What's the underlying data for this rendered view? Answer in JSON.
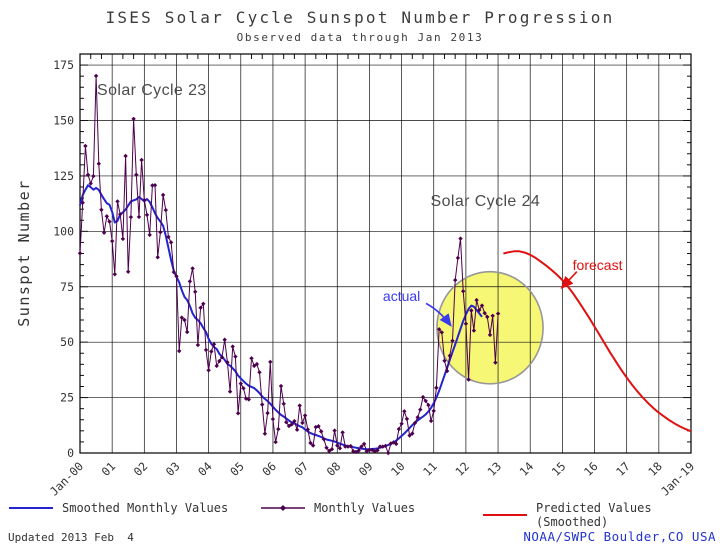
{
  "title": "ISES Solar Cycle Sunspot Number Progression",
  "subtitle": "Observed data through Jan 2013",
  "footer": {
    "updated": "Updated 2013 Feb  4",
    "credit": "NOAA/SWPC Boulder,CO USA",
    "credit_color": "#2233cc"
  },
  "chart_data": {
    "type": "line",
    "title": "ISES Solar Cycle Sunspot Number Progression",
    "subtitle": "Observed data through Jan 2013",
    "xlabel": "",
    "ylabel": "Sunspot Number",
    "ylim": [
      0,
      180
    ],
    "yticks": [
      0,
      25,
      50,
      75,
      100,
      125,
      150,
      175
    ],
    "xlim": [
      2000,
      2019
    ],
    "xtick_labels": [
      "Jan-00",
      "01",
      "02",
      "03",
      "04",
      "05",
      "06",
      "07",
      "08",
      "09",
      "10",
      "11",
      "12",
      "13",
      "14",
      "15",
      "16",
      "17",
      "18",
      "Jan-19"
    ],
    "grid": true,
    "legend_position": "bottom",
    "series": [
      {
        "id": "smoothed",
        "name": "Smoothed Monthly Values",
        "color": "#2323cf",
        "width": 2,
        "start": 2000.0,
        "step": 0.0833333,
        "values": [
          111.8,
          116.3,
          118.8,
          120.8,
          119.9,
          118.8,
          119.6,
          118.7,
          116.5,
          114.5,
          112.7,
          112.0,
          108.7,
          104.0,
          104.7,
          107.6,
          108.6,
          109.8,
          111.6,
          113.5,
          114.0,
          114.4,
          115.5,
          114.6,
          113.5,
          114.6,
          113.3,
          110.8,
          108.2,
          106.0,
          104.4,
          102.5,
          98.0,
          92.6,
          87.0,
          82.2,
          79.4,
          77.0,
          73.4,
          70.4,
          69.0,
          66.3,
          63.0,
          61.0,
          60.0,
          58.5,
          56.4,
          54.6,
          51.5,
          49.2,
          47.8,
          46.9,
          44.7,
          43.5,
          42.0,
          40.2,
          39.4,
          38.2,
          36.9,
          34.9,
          33.6,
          32.4,
          31.3,
          30.3,
          29.8,
          29.3,
          28.2,
          27.0,
          25.5,
          24.4,
          23.4,
          22.2,
          20.9,
          19.5,
          18.3,
          17.2,
          16.4,
          15.5,
          14.6,
          13.8,
          13.3,
          12.7,
          12.1,
          11.6,
          10.6,
          9.7,
          9.0,
          8.5,
          8.1,
          7.7,
          7.2,
          6.6,
          6.1,
          5.8,
          5.5,
          5.2,
          4.7,
          4.2,
          3.8,
          3.4,
          3.1,
          2.8,
          2.6,
          2.4,
          2.2,
          2.0,
          1.8,
          1.7,
          1.7,
          1.8,
          1.9,
          2.1,
          2.4,
          2.7,
          3.1,
          3.6,
          4.2,
          4.8,
          5.6,
          6.6,
          7.7,
          8.8,
          10.0,
          11.3,
          12.6,
          13.7,
          14.7,
          15.6,
          16.4,
          17.4,
          18.7,
          20.4,
          22.4,
          25.0,
          28.0,
          31.5,
          35.0,
          38.5,
          42.0,
          45.5,
          49.0,
          52.5,
          56.0,
          59.5,
          62.5,
          65.0,
          66.5,
          66.0,
          64.5,
          63.0,
          61.5
        ]
      },
      {
        "id": "monthly",
        "name": "Monthly Values",
        "color": "#4d004d",
        "width": 1,
        "marker": "diamond",
        "start": 2000.0,
        "step": 0.0833333,
        "values": [
          90.1,
          112.9,
          138.5,
          125.5,
          121.6,
          124.9,
          170.1,
          130.5,
          109.7,
          99.4,
          106.8,
          104.4,
          95.6,
          80.6,
          113.5,
          107.7,
          96.6,
          134.0,
          81.8,
          106.4,
          150.7,
          125.5,
          106.5,
          132.2,
          114.1,
          107.4,
          98.4,
          120.7,
          120.8,
          88.3,
          99.6,
          116.4,
          109.6,
          97.5,
          95.0,
          81.6,
          79.7,
          46.0,
          61.1,
          60.0,
          54.6,
          77.4,
          83.3,
          72.7,
          48.7,
          65.5,
          67.3,
          46.5,
          37.3,
          45.8,
          49.1,
          39.3,
          41.5,
          43.2,
          51.1,
          40.9,
          27.7,
          48.0,
          43.5,
          17.9,
          31.3,
          29.2,
          24.5,
          24.2,
          42.7,
          39.3,
          40.1,
          36.4,
          21.9,
          8.7,
          18.0,
          41.1,
          15.3,
          4.9,
          10.8,
          30.2,
          22.2,
          13.9,
          12.2,
          12.9,
          14.4,
          10.5,
          21.4,
          13.6,
          16.9,
          10.6,
          4.5,
          3.4,
          11.7,
          12.1,
          9.7,
          6.2,
          2.4,
          0.9,
          1.7,
          10.1,
          3.4,
          2.1,
          9.3,
          2.9,
          2.9,
          3.1,
          0.8,
          0.5,
          1.1,
          2.9,
          4.1,
          0.8,
          1.3,
          1.4,
          0.7,
          1.2,
          2.9,
          2.9,
          3.2,
          0.0,
          4.3,
          4.8,
          4.1,
          10.8,
          13.2,
          18.8,
          15.4,
          7.9,
          8.8,
          13.6,
          16.1,
          19.6,
          25.2,
          23.5,
          21.6,
          14.5,
          19.0,
          29.4,
          55.8,
          54.4,
          41.6,
          37.0,
          43.9,
          50.6,
          78.0,
          88.0,
          96.7,
          73.0,
          58.3,
          33.1,
          64.3,
          55.2,
          69.0,
          64.5,
          66.5,
          63.1,
          61.4,
          53.3,
          61.9,
          40.8,
          62.9
        ]
      },
      {
        "id": "forecast",
        "name": "Predicted Values (Smoothed)",
        "color": "#e11010",
        "width": 2,
        "start": 2013.1667,
        "step": 0.1666667,
        "values": [
          90.0,
          90.6,
          91.0,
          91.0,
          90.4,
          89.4,
          88.0,
          86.3,
          84.5,
          82.5,
          80.4,
          78.0,
          75.2,
          72.0,
          68.5,
          64.8,
          61.0,
          57.0,
          53.0,
          49.0,
          45.0,
          41.2,
          37.5,
          34.0,
          30.8,
          27.8,
          25.0,
          22.5,
          20.2,
          18.2,
          16.4,
          14.7,
          13.2,
          11.9,
          10.8,
          9.8
        ]
      }
    ],
    "highlight": {
      "x": 2012.75,
      "y": 56.5,
      "rx_years": 1.65,
      "ry_units": 25.3,
      "fill": "#f7f776",
      "stroke": "#979797"
    },
    "annotations": {
      "cycle23": {
        "el": "solar-cycle-23-label",
        "text": "Solar Cycle 23",
        "x": 2000.53,
        "y": 167.5
      },
      "cycle24": {
        "el": "solar-cycle-24-label",
        "text": "Solar Cycle 24",
        "x": 2010.9,
        "y": 117.5
      },
      "actual": {
        "el": "actual-label",
        "text": "actual",
        "x": 2009.42,
        "y": 74.5,
        "color": "#3b3bee",
        "arrow": {
          "from": [
            2010.76,
            67.5
          ],
          "ctrl": [
            2011.2,
            64.0
          ],
          "to": [
            2011.53,
            57.5
          ]
        }
      },
      "forecast": {
        "el": "forecast-label",
        "text": "forecast",
        "x": 2015.32,
        "y": 88.5,
        "color": "#e11010",
        "arrow": {
          "from": [
            2015.45,
            81.8
          ],
          "to": [
            2014.98,
            74.5
          ]
        }
      }
    }
  }
}
